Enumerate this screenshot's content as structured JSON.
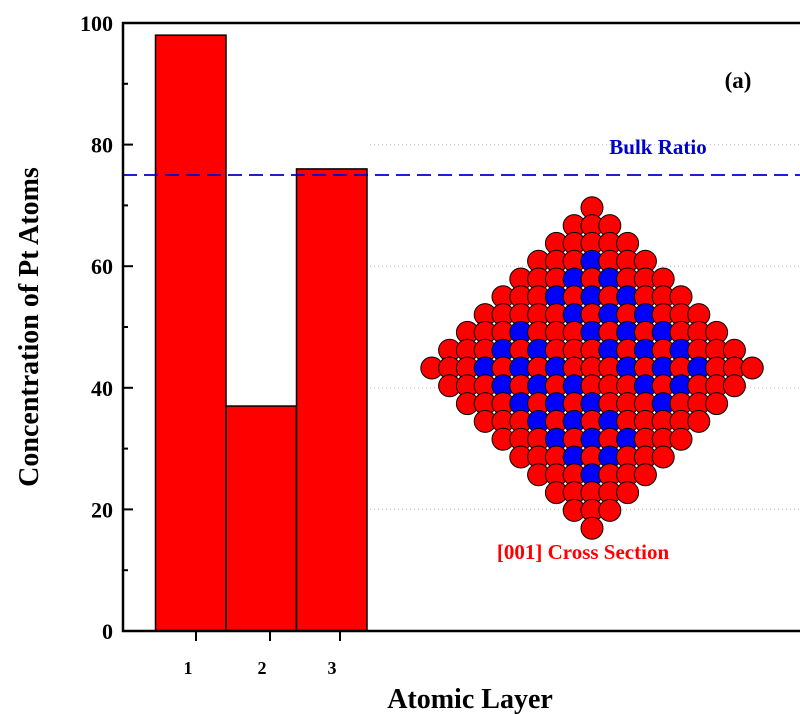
{
  "chart_data": {
    "type": "bar",
    "categories": [
      "1",
      "2",
      "3"
    ],
    "values": [
      98,
      37,
      76
    ],
    "title": "",
    "xlabel": "Atomic Layer",
    "ylabel": "Concentration of Pt Atoms",
    "ylim": [
      0,
      100
    ],
    "yticks": [
      "0",
      "20",
      "40",
      "60",
      "80",
      "100"
    ],
    "reference_line": {
      "value": 75,
      "label": "Bulk Ratio",
      "color": "#0000cc",
      "style": "dashed"
    },
    "annotations": {
      "panel_label": "(a)",
      "inset_caption": "[001] Cross Section"
    },
    "grid": "horizontal dotted, right side only",
    "colors": {
      "bar": "#ff0000",
      "bar_edge": "#000000",
      "inset_outer_atoms": "#ff0000",
      "inset_inner_atoms": "#0000ff",
      "caption": "#ff0000"
    }
  }
}
